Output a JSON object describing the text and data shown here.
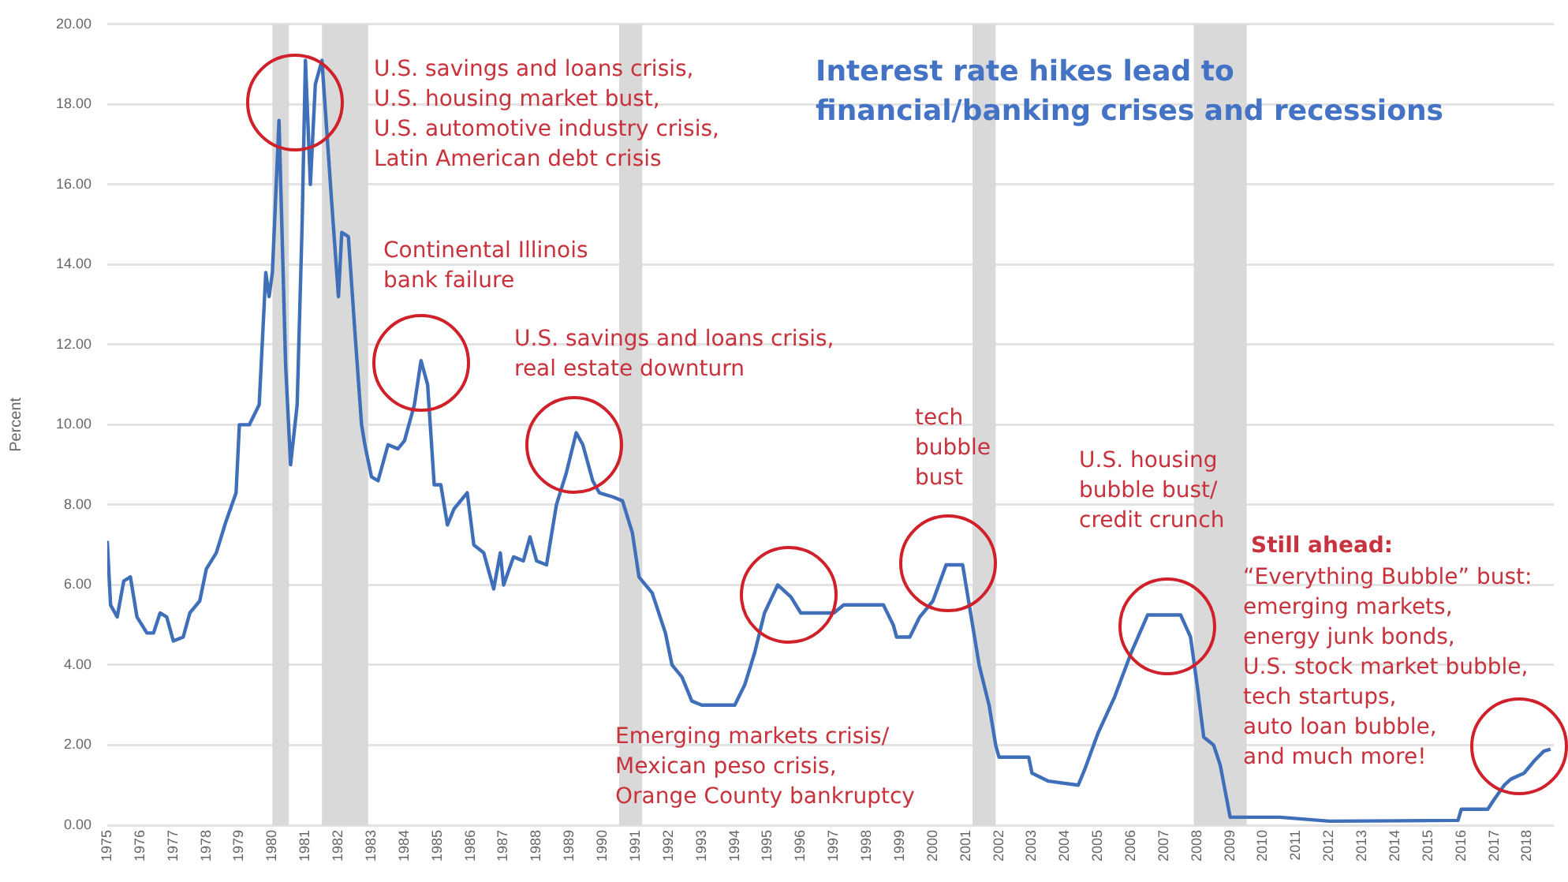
{
  "chart_data": {
    "type": "line",
    "title": "Interest rate hikes lead to\nfinancial/banking crises and recessions",
    "ylabel": "Percent",
    "x": [
      1975.0,
      1975.1,
      1975.3,
      1975.5,
      1975.7,
      1975.9,
      1976.2,
      1976.4,
      1976.6,
      1976.8,
      1977.0,
      1977.3,
      1977.5,
      1977.8,
      1978.0,
      1978.3,
      1978.6,
      1978.9,
      1979.0,
      1979.3,
      1979.6,
      1979.8,
      1979.9,
      1980.0,
      1980.2,
      1980.4,
      1980.55,
      1980.75,
      1980.9,
      1981.0,
      1981.15,
      1981.3,
      1981.5,
      1981.8,
      1982.0,
      1982.1,
      1982.3,
      1982.5,
      1982.7,
      1982.8,
      1983.0,
      1983.2,
      1983.5,
      1983.8,
      1984.0,
      1984.3,
      1984.5,
      1984.7,
      1984.9,
      1985.1,
      1985.3,
      1985.5,
      1985.9,
      1986.1,
      1986.4,
      1986.7,
      1986.9,
      1987.0,
      1987.3,
      1987.6,
      1987.8,
      1988.0,
      1988.3,
      1988.6,
      1988.9,
      1989.2,
      1989.4,
      1989.7,
      1989.9,
      1990.3,
      1990.6,
      1990.9,
      1991.1,
      1991.5,
      1991.9,
      1992.1,
      1992.4,
      1992.7,
      1993.0,
      1993.5,
      1994.0,
      1994.3,
      1994.6,
      1994.9,
      1995.3,
      1995.7,
      1996.0,
      1996.5,
      1997.0,
      1997.3,
      1998.5,
      1998.8,
      1998.9,
      1999.3,
      1999.6,
      2000.0,
      2000.4,
      2000.9,
      2001.1,
      2001.4,
      2001.7,
      2001.9,
      2002.0,
      2002.9,
      2003.0,
      2003.5,
      2004.4,
      2004.6,
      2005.0,
      2005.5,
      2006.0,
      2006.5,
      2007.5,
      2007.8,
      2008.0,
      2008.2,
      2008.5,
      2008.7,
      2009.0,
      2009.5,
      2010.5,
      2012.0,
      2015.9,
      2016.0,
      2016.8,
      2017.0,
      2017.3,
      2017.5,
      2017.9,
      2018.2,
      2018.5,
      2018.7
    ],
    "series": [
      {
        "color": "#3f6fb8",
        "values": [
          7.1,
          5.5,
          5.2,
          6.1,
          6.2,
          5.2,
          4.8,
          4.8,
          5.3,
          5.2,
          4.6,
          4.7,
          5.3,
          5.6,
          6.4,
          6.8,
          7.6,
          8.3,
          10.0,
          10.0,
          10.5,
          13.8,
          13.2,
          13.8,
          17.6,
          11.5,
          9.0,
          10.5,
          15.0,
          19.1,
          16.0,
          18.5,
          19.1,
          15.5,
          13.2,
          14.8,
          14.7,
          12.3,
          10.0,
          9.5,
          8.7,
          8.6,
          9.5,
          9.4,
          9.6,
          10.5,
          11.6,
          11.0,
          8.5,
          8.5,
          7.5,
          7.9,
          8.3,
          7.0,
          6.8,
          5.9,
          6.8,
          6.0,
          6.7,
          6.6,
          7.2,
          6.6,
          6.5,
          8.0,
          8.8,
          9.8,
          9.5,
          8.6,
          8.3,
          8.2,
          8.1,
          7.3,
          6.2,
          5.8,
          4.8,
          4.0,
          3.7,
          3.1,
          3.0,
          3.0,
          3.0,
          3.5,
          4.3,
          5.3,
          6.0,
          5.7,
          5.3,
          5.3,
          5.3,
          5.5,
          5.5,
          5.0,
          4.7,
          4.7,
          5.2,
          5.6,
          6.5,
          6.5,
          5.5,
          4.0,
          3.0,
          2.0,
          1.7,
          1.7,
          1.3,
          1.1,
          1.0,
          1.4,
          2.3,
          3.2,
          4.3,
          5.25,
          5.25,
          4.7,
          3.5,
          2.2,
          2.0,
          1.5,
          0.2,
          0.2,
          0.2,
          0.1,
          0.12,
          0.4,
          0.4,
          0.65,
          1.0,
          1.15,
          1.3,
          1.6,
          1.85,
          1.9
        ]
      }
    ],
    "xlim": [
      1975,
      2018.8
    ],
    "xticks": [
      1975,
      1976,
      1977,
      1978,
      1979,
      1980,
      1981,
      1982,
      1983,
      1984,
      1985,
      1986,
      1987,
      1988,
      1989,
      1990,
      1991,
      1992,
      1993,
      1994,
      1995,
      1996,
      1997,
      1998,
      1999,
      2000,
      2001,
      2002,
      2003,
      2004,
      2005,
      2006,
      2007,
      2008,
      2009,
      2010,
      2011,
      2012,
      2013,
      2014,
      2015,
      2016,
      2017,
      2018
    ],
    "ylim": [
      0,
      20
    ],
    "yticks": [
      {
        "value": 0,
        "label": "0.00"
      },
      {
        "value": 2,
        "label": "2.00"
      },
      {
        "value": 4,
        "label": "4.00"
      },
      {
        "value": 6,
        "label": "6.00"
      },
      {
        "value": 8,
        "label": "8.00"
      },
      {
        "value": 10,
        "label": "10.00"
      },
      {
        "value": 12,
        "label": "12.00"
      },
      {
        "value": 14,
        "label": "14.00"
      },
      {
        "value": 16,
        "label": "16.00"
      },
      {
        "value": 18,
        "label": "18.00"
      },
      {
        "value": 20,
        "label": "20.00"
      }
    ],
    "bands": [
      {
        "axis": "x",
        "from": 1980.0,
        "to": 1980.5,
        "color": "#d9d9d9"
      },
      {
        "axis": "x",
        "from": 1981.5,
        "to": 1982.9,
        "color": "#d9d9d9"
      },
      {
        "axis": "x",
        "from": 1990.5,
        "to": 1991.2,
        "color": "#d9d9d9"
      },
      {
        "axis": "x",
        "from": 2001.2,
        "to": 2001.9,
        "color": "#d9d9d9"
      },
      {
        "axis": "x",
        "from": 2007.9,
        "to": 2009.5,
        "color": "#d9d9d9"
      }
    ],
    "annotations": [
      "U.S. savings and loans crisis,\nU.S. housing market bust,\nU.S. automotive industry crisis,\nLatin American debt crisis",
      "Continental Illinois\nbank failure",
      "U.S. savings and loans crisis,\nreal estate downturn",
      "Emerging markets crisis/\nMexican peso crisis,\nOrange County bankruptcy",
      "tech\nbubble\nbust",
      "U.S. housing\nbubble bust/\ncredit crunch",
      "Still ahead:",
      "“Everything Bubble” bust:\nemerging markets,\nenergy junk bonds,\nU.S. stock market bubble,\ntech startups,\nauto loan bubble,\nand much more!"
    ],
    "grid": "y",
    "legend": false,
    "marker": "none",
    "line_style": "solid"
  }
}
